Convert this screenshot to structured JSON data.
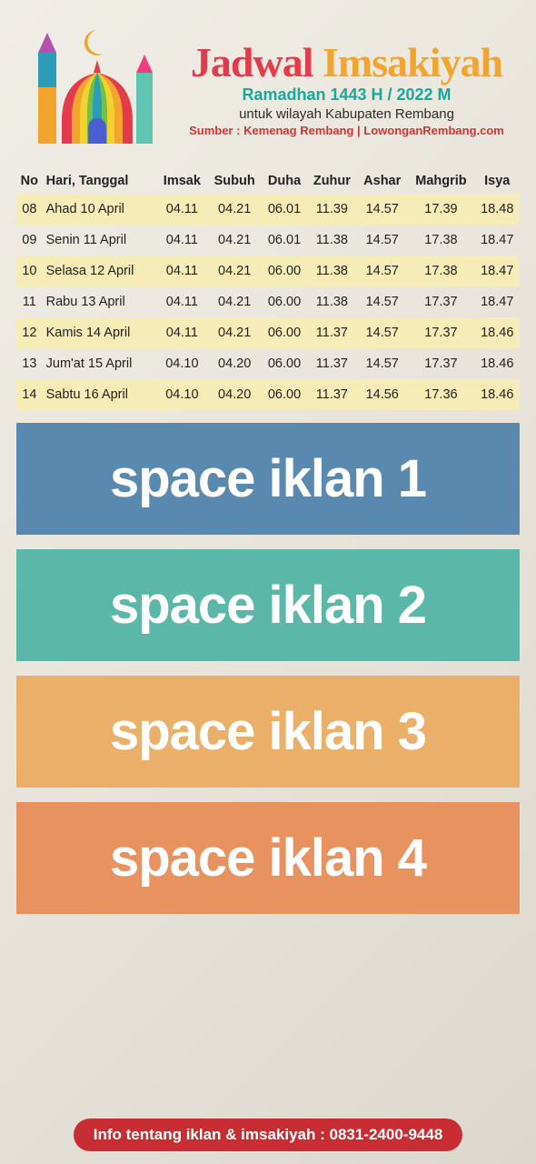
{
  "title": {
    "word1": "Jadwal",
    "word2": "Imsakiyah"
  },
  "ramadhan": "Ramadhan 1443 H / 2022 M",
  "wilayah": "untuk wilayah Kabupaten Rembang",
  "sumber": "Sumber : Kemenag Rembang | LowonganRembang.com",
  "columns": [
    "No",
    "Hari, Tanggal",
    "Imsak",
    "Subuh",
    "Duha",
    "Zuhur",
    "Ashar",
    "Mahgrib",
    "Isya"
  ],
  "rows": [
    {
      "no": "08",
      "hari": "Ahad 10 April",
      "imsak": "04.11",
      "subuh": "04.21",
      "duha": "06.01",
      "zuhur": "11.39",
      "ashar": "14.57",
      "maghrib": "17.39",
      "isya": "18.48"
    },
    {
      "no": "09",
      "hari": "Senin 11 April",
      "imsak": "04.11",
      "subuh": "04.21",
      "duha": "06.01",
      "zuhur": "11.38",
      "ashar": "14.57",
      "maghrib": "17.38",
      "isya": "18.47"
    },
    {
      "no": "10",
      "hari": "Selasa 12 April",
      "imsak": "04.11",
      "subuh": "04.21",
      "duha": "06.00",
      "zuhur": "11.38",
      "ashar": "14.57",
      "maghrib": "17.38",
      "isya": "18.47"
    },
    {
      "no": "11",
      "hari": "Rabu 13 April",
      "imsak": "04.11",
      "subuh": "04.21",
      "duha": "06.00",
      "zuhur": "11.38",
      "ashar": "14.57",
      "maghrib": "17.37",
      "isya": "18.47"
    },
    {
      "no": "12",
      "hari": "Kamis 14 April",
      "imsak": "04.11",
      "subuh": "04.21",
      "duha": "06.00",
      "zuhur": "11.37",
      "ashar": "14.57",
      "maghrib": "17.37",
      "isya": "18.46"
    },
    {
      "no": "13",
      "hari": "Jum'at 15 April",
      "imsak": "04.10",
      "subuh": "04.20",
      "duha": "06.00",
      "zuhur": "11.37",
      "ashar": "14.57",
      "maghrib": "17.37",
      "isya": "18.46"
    },
    {
      "no": "14",
      "hari": "Sabtu 16 April",
      "imsak": "04.10",
      "subuh": "04.20",
      "duha": "06.00",
      "zuhur": "11.37",
      "ashar": "14.56",
      "maghrib": "17.36",
      "isya": "18.46"
    }
  ],
  "row_colors": {
    "odd": "#f6ecb8",
    "even": "transparent"
  },
  "ads": [
    {
      "text": "space iklan 1",
      "bg": "#5a89b0"
    },
    {
      "text": "space iklan 2",
      "bg": "#5bb8a8"
    },
    {
      "text": "space iklan 3",
      "bg": "#eab069"
    },
    {
      "text": "space iklan 4",
      "bg": "#e8925f"
    }
  ],
  "footer": "Info tentang iklan & imsakiyah : 0831-2400-9448",
  "footer_bg": "#c92d34",
  "logo_colors": {
    "minaret1_top": "#b84fb0",
    "minaret1_mid": "#2d9cb8",
    "minaret1_bot": "#f2a52e",
    "minaret2_top": "#f23b85",
    "minaret2_bot": "#5fc4b0",
    "moon": "#f2a52e",
    "dome_segments": [
      "#e33b4a",
      "#f2a52e",
      "#f2d22e",
      "#6dc24a",
      "#2d9cb8",
      "#4a5fd1",
      "#b84fb0"
    ]
  }
}
